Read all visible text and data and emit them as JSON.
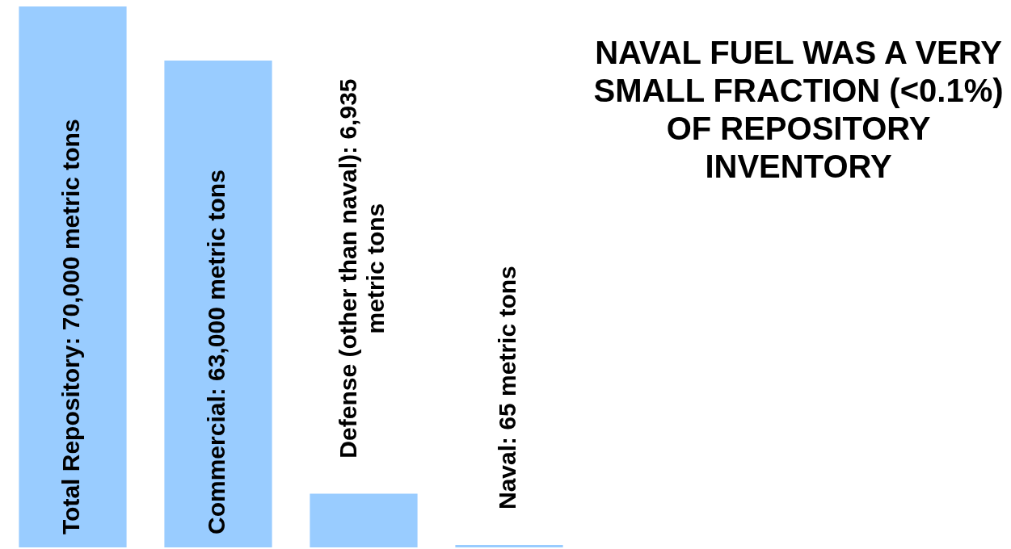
{
  "chart_data": {
    "type": "bar",
    "categories": [
      null,
      null,
      null,
      null
    ],
    "values": [
      70000,
      63000,
      6935,
      65
    ],
    "value_labels": [
      "Total Repository: 70,000 metric tons",
      "Commercial: 63,000 metric tons",
      "Defense (other than naval): 6,935 metric tons",
      "Naval: 65 metric tons"
    ],
    "color": "#99ccff",
    "legend": false,
    "tick_labels": false,
    "annotations": [
      "NAVAL FUEL WAS A VERY SMALL FRACTION (<0.1%) OF REPOSITORY INVENTORY"
    ]
  }
}
